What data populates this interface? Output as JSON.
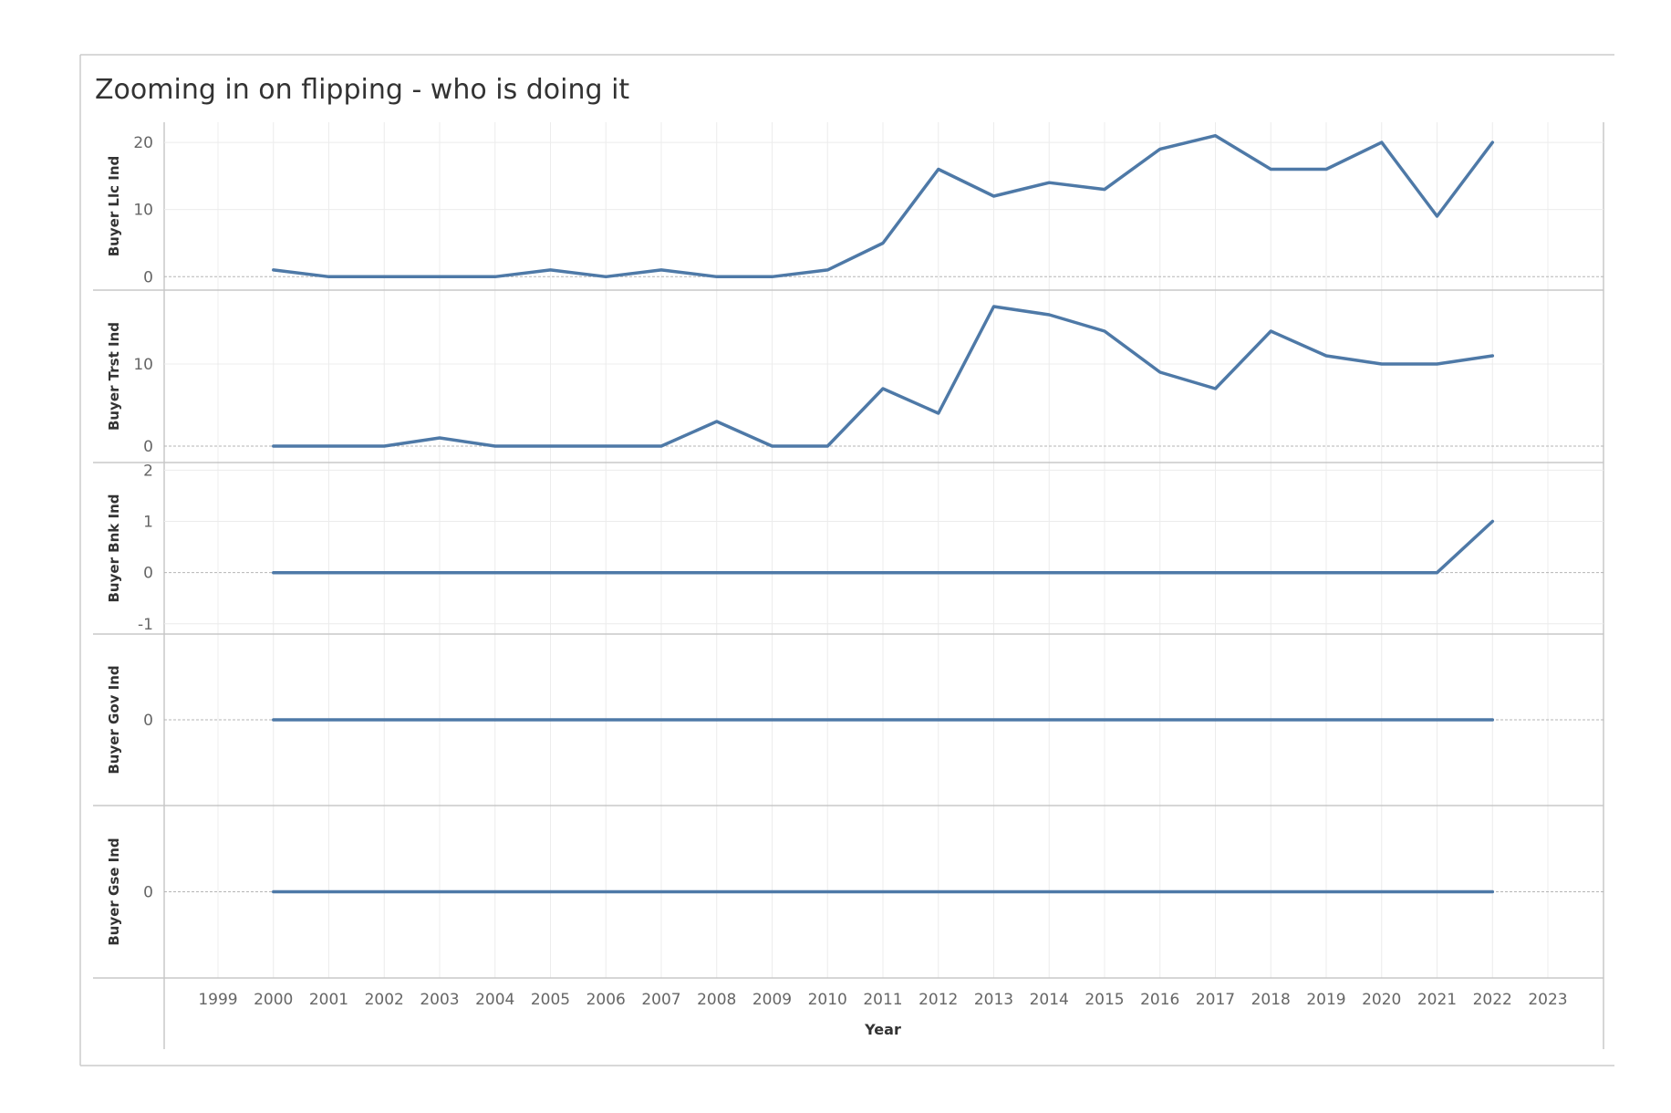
{
  "title": "Zooming in on flipping - who is doing it",
  "colors": {
    "line": "#4e79a7",
    "grid": "#ececec",
    "axis": "#c8c8c8",
    "zero": "#b5b5b5",
    "text": "#333333"
  },
  "chart_data": {
    "type": "line",
    "title": "Zooming in on flipping - who is doing it",
    "xlabel": "Year",
    "x_ticks": [
      "1999",
      "2000",
      "2001",
      "2002",
      "2003",
      "2004",
      "2005",
      "2006",
      "2007",
      "2008",
      "2009",
      "2010",
      "2011",
      "2012",
      "2013",
      "2014",
      "2015",
      "2016",
      "2017",
      "2018",
      "2019",
      "2020",
      "2021",
      "2022",
      "2023"
    ],
    "xlim": [
      1999,
      2023
    ],
    "x": [
      2000,
      2001,
      2002,
      2003,
      2004,
      2005,
      2006,
      2007,
      2008,
      2009,
      2010,
      2011,
      2012,
      2013,
      2014,
      2015,
      2016,
      2017,
      2018,
      2019,
      2020,
      2021,
      2022
    ],
    "panels": [
      {
        "ylabel": "Buyer Llc Ind",
        "ylim": [
          -2,
          23
        ],
        "ticks": [
          "0",
          "10",
          "20"
        ],
        "tick_values": [
          0,
          10,
          20
        ],
        "values": [
          1,
          0,
          0,
          0,
          0,
          1,
          0,
          1,
          0,
          0,
          1,
          5,
          16,
          12,
          14,
          13,
          19,
          21,
          16,
          16,
          20,
          9,
          20
        ]
      },
      {
        "ylabel": "Buyer Trst Ind",
        "ylim": [
          -2,
          19
        ],
        "ticks": [
          "0",
          "10"
        ],
        "tick_values": [
          0,
          10
        ],
        "values": [
          0,
          0,
          0,
          1,
          0,
          0,
          0,
          0,
          3,
          0,
          0,
          7,
          4,
          17,
          16,
          14,
          9,
          7,
          14,
          11,
          10,
          10,
          11
        ]
      },
      {
        "ylabel": "Buyer Bnk Ind",
        "ylim": [
          -1.2,
          2.15
        ],
        "ticks": [
          "-1",
          "0",
          "1",
          "2"
        ],
        "tick_values": [
          -1,
          0,
          1,
          2
        ],
        "values": [
          0,
          0,
          0,
          0,
          0,
          0,
          0,
          0,
          0,
          0,
          0,
          0,
          0,
          0,
          0,
          0,
          0,
          0,
          0,
          0,
          0,
          0,
          1
        ]
      },
      {
        "ylabel": "Buyer Gov Ind",
        "ylim": [
          -1,
          1
        ],
        "ticks": [
          "0"
        ],
        "tick_values": [
          0
        ],
        "values": [
          0,
          0,
          0,
          0,
          0,
          0,
          0,
          0,
          0,
          0,
          0,
          0,
          0,
          0,
          0,
          0,
          0,
          0,
          0,
          0,
          0,
          0,
          0
        ]
      },
      {
        "ylabel": "Buyer Gse Ind",
        "ylim": [
          -1,
          1
        ],
        "ticks": [
          "0"
        ],
        "tick_values": [
          0
        ],
        "values": [
          0,
          0,
          0,
          0,
          0,
          0,
          0,
          0,
          0,
          0,
          0,
          0,
          0,
          0,
          0,
          0,
          0,
          0,
          0,
          0,
          0,
          0,
          0
        ]
      }
    ]
  }
}
